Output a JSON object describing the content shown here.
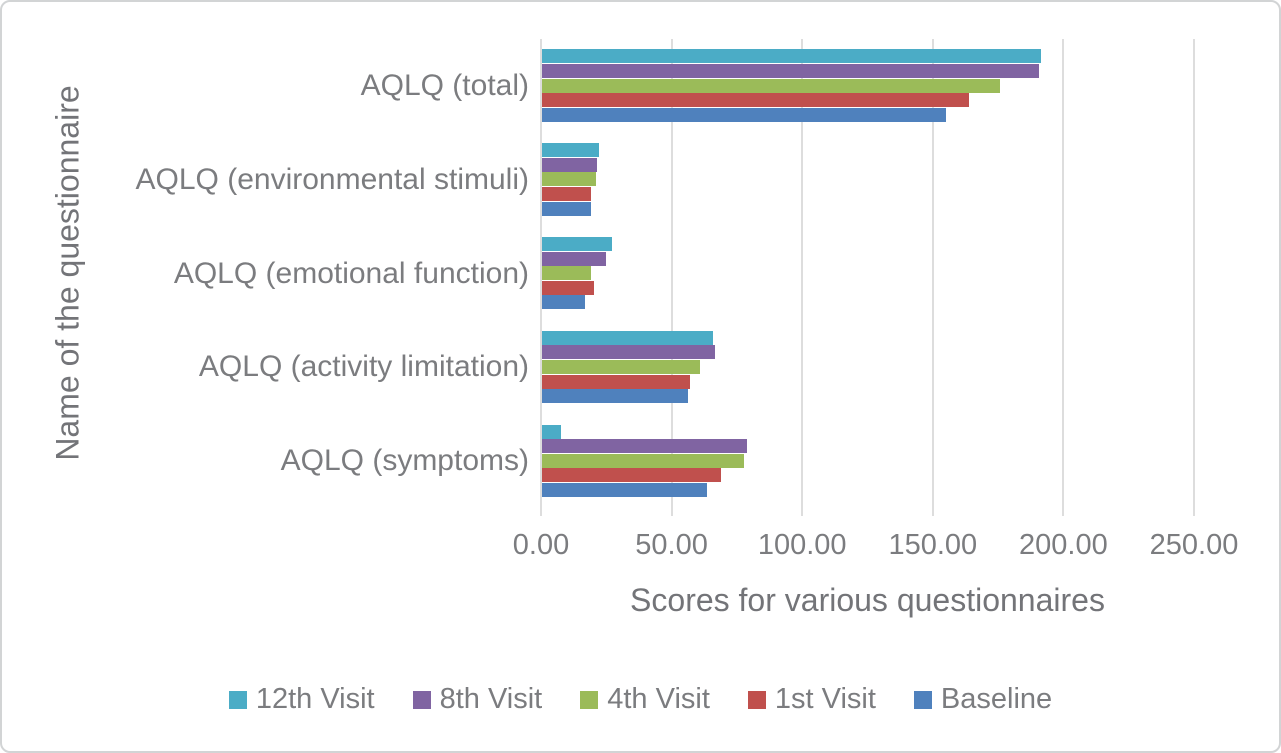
{
  "chart_data": {
    "type": "bar",
    "orientation": "horizontal",
    "title": "",
    "categories": [
      "AQLQ (total)",
      "AQLQ (environmental stimuli)",
      "AQLQ (emotional function)",
      "AQLQ (activity limitation)",
      "AQLQ (symptoms)"
    ],
    "series": [
      {
        "name": "12th Visit",
        "color": "#4BACC6",
        "values": [
          191.0,
          21.9,
          26.9,
          65.5,
          7.4
        ]
      },
      {
        "name": "8th Visit",
        "color": "#8064A2",
        "values": [
          190.2,
          21.2,
          24.6,
          66.3,
          78.6
        ]
      },
      {
        "name": "4th Visit",
        "color": "#9BBB59",
        "values": [
          175.5,
          20.8,
          18.6,
          60.6,
          77.3
        ]
      },
      {
        "name": "1st Visit",
        "color": "#C0504D",
        "values": [
          163.4,
          18.8,
          19.9,
          56.5,
          68.6
        ]
      },
      {
        "name": "Baseline",
        "color": "#4F81BD",
        "values": [
          154.5,
          18.8,
          16.3,
          55.9,
          63.3
        ]
      }
    ],
    "xlabel": "Scores for various questionnaires",
    "ylabel": "Name of the questionnaire",
    "xlim": [
      0,
      250
    ],
    "xticks": [
      "0.00",
      "50.00",
      "100.00",
      "150.00",
      "200.00",
      "250.00"
    ],
    "grid": true,
    "gridline_color": "#DDDDDD",
    "text_color": "#7B7C7F",
    "legend_position": "bottom"
  }
}
